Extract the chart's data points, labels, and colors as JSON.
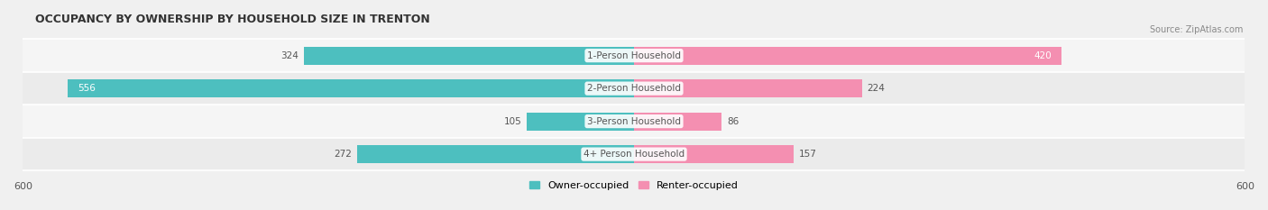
{
  "title": "OCCUPANCY BY OWNERSHIP BY HOUSEHOLD SIZE IN TRENTON",
  "source": "Source: ZipAtlas.com",
  "categories": [
    "1-Person Household",
    "2-Person Household",
    "3-Person Household",
    "4+ Person Household"
  ],
  "owner_values": [
    324,
    556,
    105,
    272
  ],
  "renter_values": [
    420,
    224,
    86,
    157
  ],
  "owner_color": "#4DBFBF",
  "renter_color": "#F48FB1",
  "background_color": "#f0f0f0",
  "bar_bg_color": "#e0e0e0",
  "xlim": 600,
  "legend_labels": [
    "Owner-occupied",
    "Renter-occupied"
  ],
  "axis_label_left": "600",
  "axis_label_right": "600",
  "bar_height": 0.55,
  "row_bg_colors": [
    "#f8f8f8",
    "#efefef"
  ]
}
